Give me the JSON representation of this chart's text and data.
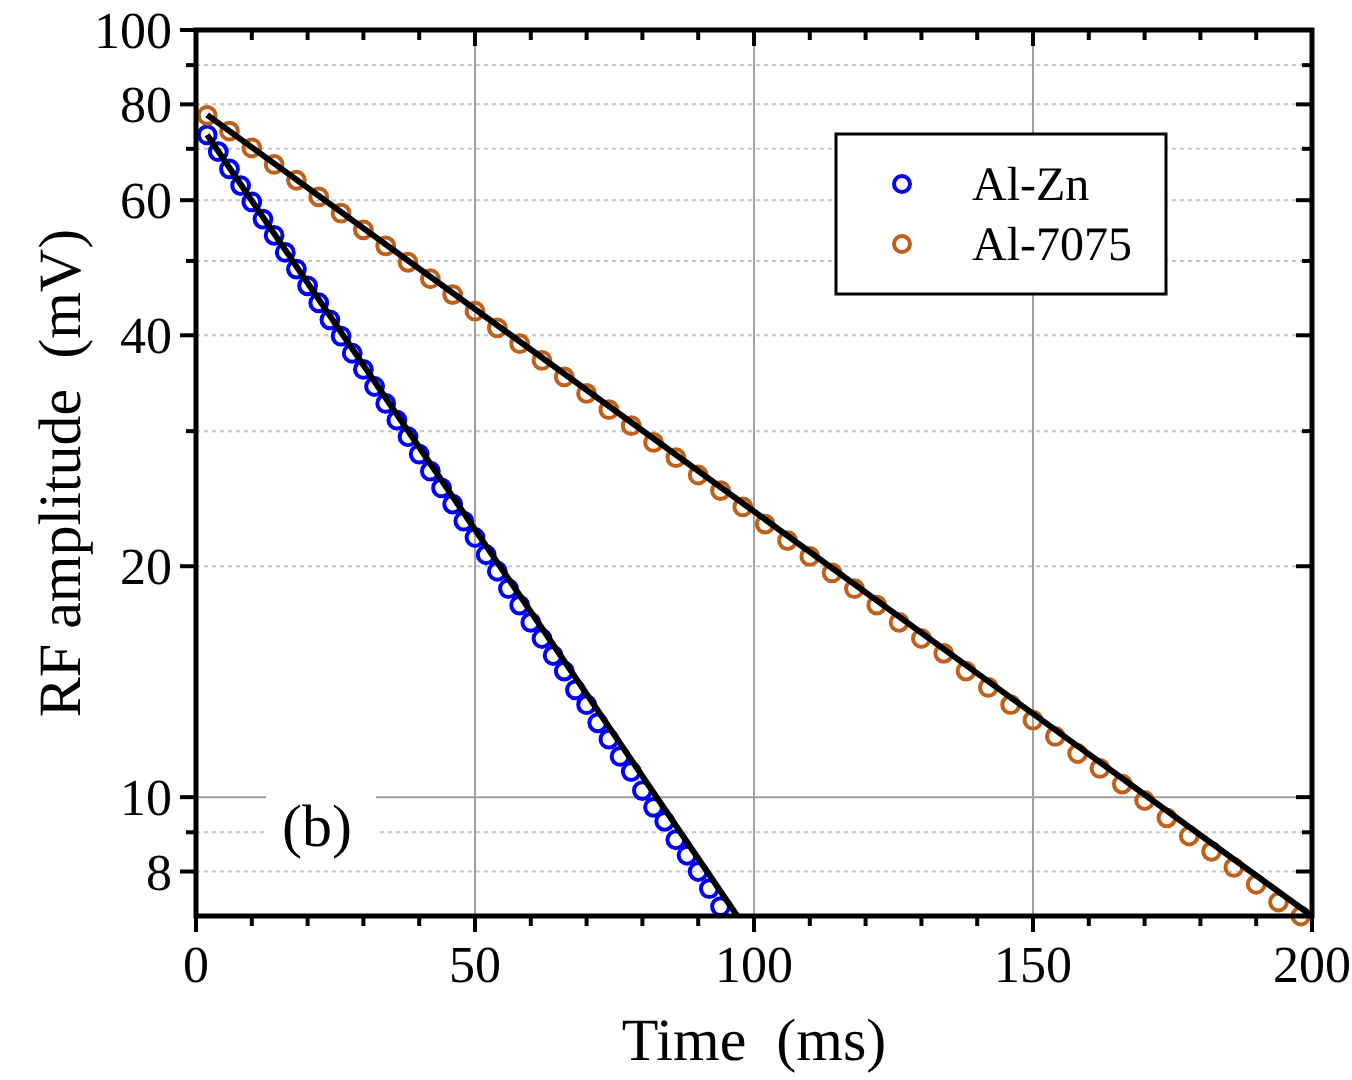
{
  "chart_data": {
    "type": "scatter",
    "xlabel": "Time  (ms)",
    "ylabel": "RF amplitude  (mV)",
    "annotations": [
      "(b)"
    ],
    "log": "y",
    "grid": true,
    "legend": "top right",
    "xlim": [
      0,
      200
    ],
    "xticks": [
      0,
      {
        "value": 10,
        "label": null
      },
      {
        "value": 20,
        "label": null
      },
      {
        "value": 30,
        "label": null
      },
      {
        "value": 40,
        "label": null
      },
      50,
      {
        "value": 60,
        "label": null
      },
      {
        "value": 70,
        "label": null
      },
      {
        "value": 80,
        "label": null
      },
      {
        "value": 90,
        "label": null
      },
      100,
      {
        "value": 110,
        "label": null
      },
      {
        "value": 120,
        "label": null
      },
      {
        "value": 130,
        "label": null
      },
      {
        "value": 140,
        "label": null
      },
      150,
      {
        "value": 160,
        "label": null
      },
      {
        "value": 170,
        "label": null
      },
      {
        "value": 180,
        "label": null
      },
      {
        "value": 190,
        "label": null
      },
      200
    ],
    "ylim": [
      7,
      100
    ],
    "yticks": [
      8,
      {
        "value": 9,
        "label": null
      },
      10,
      20,
      {
        "value": 30,
        "label": null
      },
      40,
      {
        "value": 50,
        "label": null
      },
      60,
      {
        "value": 70,
        "label": null
      },
      80,
      {
        "value": 90,
        "label": null
      },
      100
    ],
    "series": [
      {
        "name": "Al-Zn",
        "marker": "circle",
        "color": "#0000ff",
        "x": [
          2,
          4,
          6,
          8,
          10,
          12,
          14,
          16,
          18,
          20,
          22,
          24,
          26,
          28,
          30,
          32,
          34,
          36,
          38,
          40,
          42,
          44,
          46,
          48,
          50,
          52,
          54,
          56,
          58,
          60,
          62,
          64,
          66,
          68,
          70,
          72,
          74,
          76,
          78,
          80,
          82,
          84,
          86,
          88,
          90,
          92,
          94
        ],
        "values": [
          73,
          69.4,
          65.9,
          62.7,
          59.7,
          56.7,
          54,
          51.3,
          48.8,
          46.4,
          44.1,
          41.9,
          39.9,
          37.9,
          36.1,
          34.3,
          32.6,
          31,
          29.5,
          28,
          26.6,
          25.3,
          24.1,
          22.9,
          21.8,
          20.7,
          19.7,
          18.7,
          17.8,
          16.9,
          16.1,
          15.3,
          14.6,
          13.8,
          13.2,
          12.5,
          11.9,
          11.3,
          10.8,
          10.2,
          9.7,
          9.3,
          8.8,
          8.4,
          8,
          7.6,
          7.2
        ]
      },
      {
        "name": "Al-7075",
        "marker": "circle",
        "color": "#c0601a",
        "x": [
          2,
          6,
          10,
          14,
          18,
          22,
          26,
          30,
          34,
          38,
          42,
          46,
          50,
          54,
          58,
          62,
          66,
          70,
          74,
          78,
          82,
          86,
          90,
          94,
          98,
          102,
          106,
          110,
          114,
          118,
          122,
          126,
          130,
          134,
          138,
          142,
          146,
          150,
          154,
          158,
          162,
          166,
          170,
          174,
          178,
          182,
          186,
          190,
          194,
          198
        ],
        "values": [
          77.4,
          73.8,
          70.2,
          66.8,
          63.7,
          60.6,
          57.7,
          54.9,
          52.3,
          49.8,
          47.4,
          45.2,
          43,
          40.9,
          39,
          37.1,
          35.3,
          33.6,
          32,
          30.5,
          29,
          27.7,
          26.3,
          25.1,
          23.9,
          22.7,
          21.6,
          20.6,
          19.6,
          18.7,
          17.8,
          16.9,
          16.1,
          15.4,
          14.6,
          13.9,
          13.2,
          12.6,
          12,
          11.4,
          10.9,
          10.4,
          9.9,
          9.4,
          8.9,
          8.5,
          8.1,
          7.7,
          7.3,
          7
        ]
      },
      {
        "type": "line",
        "marker": "none",
        "color": "#000000",
        "x": [
          2,
          97
        ],
        "values": [
          73,
          7
        ]
      },
      {
        "type": "line",
        "marker": "none",
        "color": "#000000",
        "x": [
          2,
          200
        ],
        "values": [
          77.5,
          7
        ]
      }
    ]
  }
}
